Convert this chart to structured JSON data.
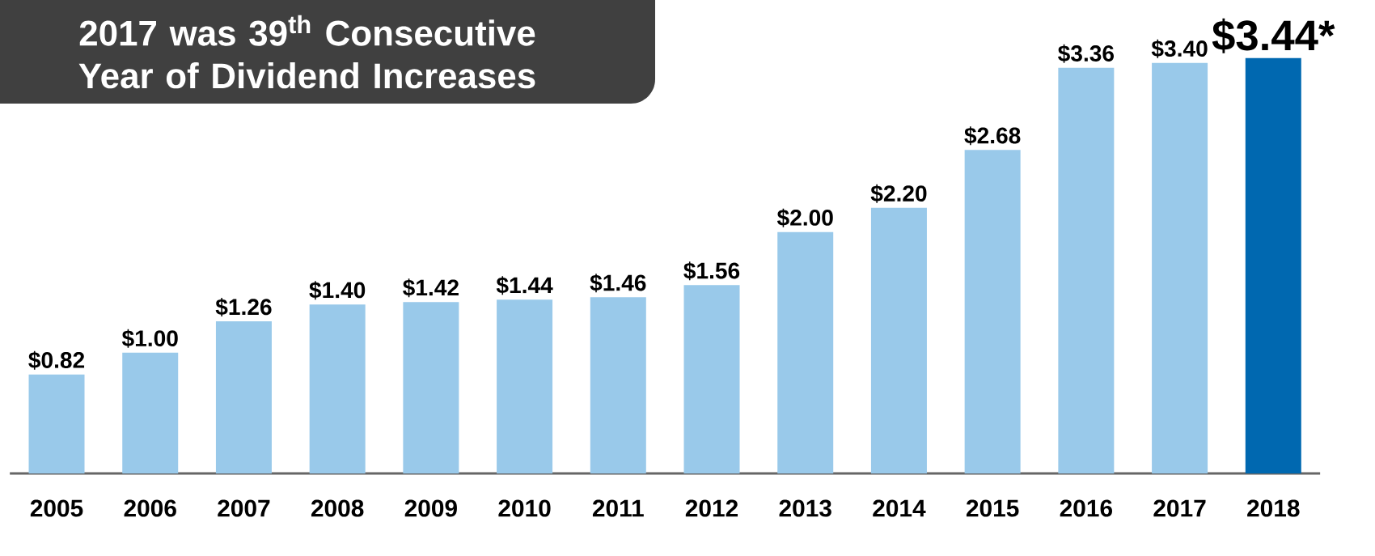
{
  "chart_data": {
    "type": "bar",
    "title": "2017 was 39$^{th}$ Consecutive Year of Dividend Increases",
    "categories": [
      "2005",
      "2006",
      "2007",
      "2008",
      "2009",
      "2010",
      "2011",
      "2012",
      "2013",
      "2014",
      "2015",
      "2016",
      "2017",
      "2018"
    ],
    "values": [
      0.82,
      1.0,
      1.26,
      1.4,
      1.42,
      1.44,
      1.46,
      1.56,
      2.0,
      2.2,
      2.68,
      3.36,
      3.4,
      3.44
    ],
    "colors": [
      "#99c9ea",
      "#99c9ea",
      "#99c9ea",
      "#99c9ea",
      "#99c9ea",
      "#99c9ea",
      "#99c9ea",
      "#99c9ea",
      "#99c9ea",
      "#99c9ea",
      "#99c9ea",
      "#99c9ea",
      "#99c9ea",
      "#0068b0"
    ],
    "value_labels": [
      "$0.82",
      "$1.00",
      "$1.26",
      "$1.40",
      "$1.42",
      "$1.44",
      "$1.46",
      "$1.56",
      "$2.00",
      "$2.20",
      "$2.68",
      "$3.36",
      "$3.40",
      "$3.44*"
    ]
  }
}
